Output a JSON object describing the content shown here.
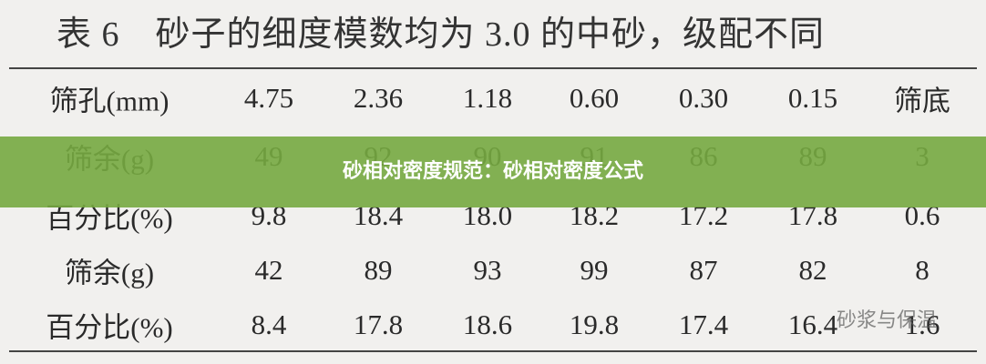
{
  "table": {
    "title": "表 6　砂子的细度模数均为 3.0 的中砂，级配不同",
    "rows": [
      [
        "筛孔(mm)",
        "4.75",
        "2.36",
        "1.18",
        "0.60",
        "0.30",
        "0.15",
        "筛底"
      ],
      [
        "筛余(g)",
        "49",
        "92",
        "90",
        "91",
        "86",
        "89",
        "3"
      ],
      [
        "百分比(%)",
        "9.8",
        "18.4",
        "18.0",
        "18.2",
        "17.2",
        "17.8",
        "0.6"
      ],
      [
        "筛余(g)",
        "42",
        "89",
        "93",
        "99",
        "87",
        "82",
        "8"
      ],
      [
        "百分比(%)",
        "8.4",
        "17.8",
        "18.6",
        "19.8",
        "17.4",
        "16.4",
        "1.6"
      ]
    ]
  },
  "banner": {
    "text": "砂相对密度规范：砂相对密度公式"
  },
  "watermark": {
    "text": "砂浆与保温"
  }
}
